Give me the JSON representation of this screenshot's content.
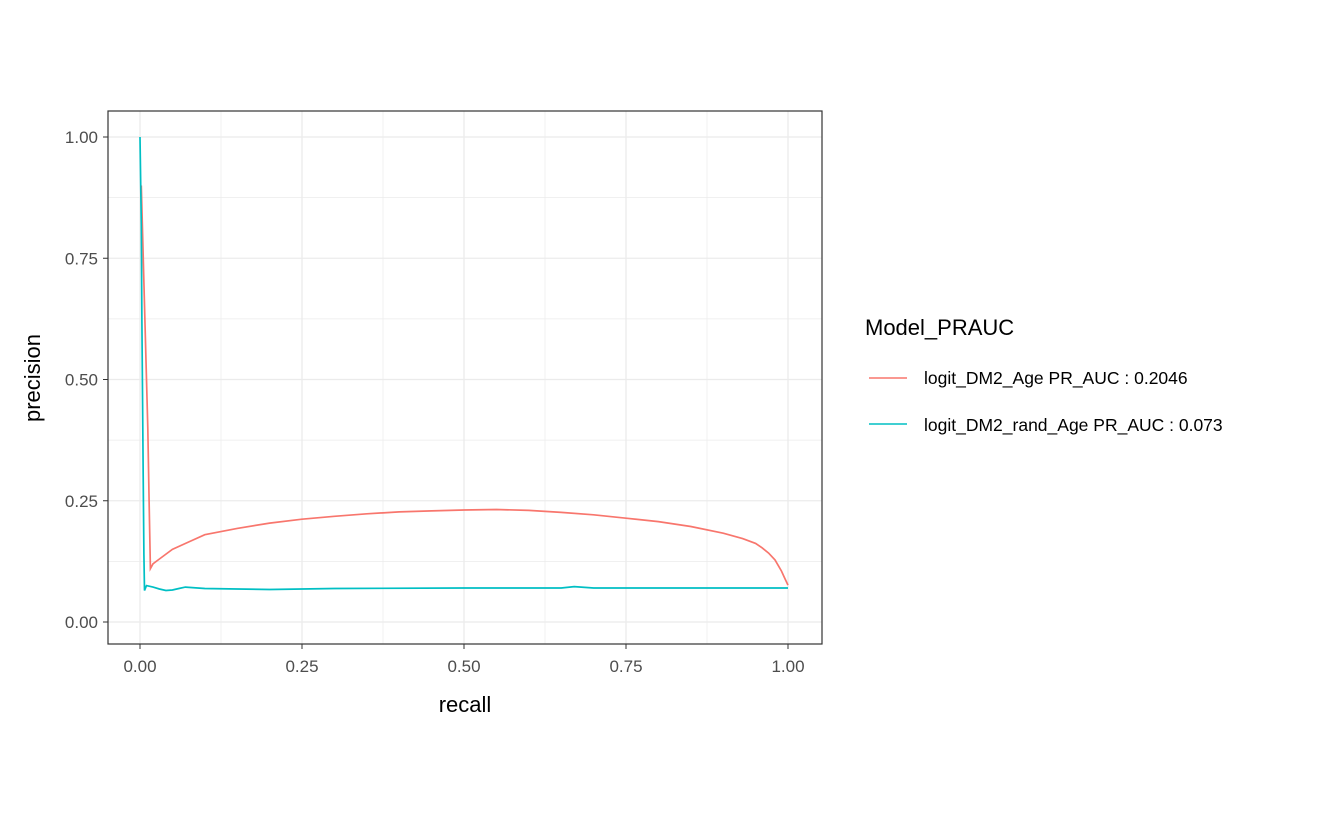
{
  "chart_data": {
    "type": "line",
    "title": "",
    "xlabel": "recall",
    "ylabel": "precision",
    "xlim": [
      -0.05,
      1.05
    ],
    "ylim": [
      -0.05,
      1.05
    ],
    "xticks": [
      "0.00",
      "0.25",
      "0.50",
      "0.75",
      "1.00"
    ],
    "yticks": [
      "0.00",
      "0.25",
      "0.50",
      "0.75",
      "1.00"
    ],
    "grid": true,
    "theme": "bw",
    "legend": {
      "title": "Model_PRAUC",
      "placement": "right"
    },
    "series": [
      {
        "name": "logit_DM2_Age PR_AUC : 0.2046",
        "color": "#F8766D",
        "x": [
          0.002,
          0.004,
          0.006,
          0.008,
          0.01,
          0.012,
          0.014,
          0.016,
          0.02,
          0.03,
          0.05,
          0.075,
          0.1,
          0.15,
          0.2,
          0.25,
          0.3,
          0.35,
          0.4,
          0.45,
          0.5,
          0.55,
          0.6,
          0.65,
          0.7,
          0.75,
          0.8,
          0.85,
          0.9,
          0.93,
          0.95,
          0.96,
          0.97,
          0.98,
          0.99,
          0.995,
          1.0
        ],
        "y": [
          0.9,
          0.8,
          0.7,
          0.6,
          0.5,
          0.4,
          0.25,
          0.11,
          0.12,
          0.13,
          0.15,
          0.165,
          0.18,
          0.193,
          0.204,
          0.212,
          0.218,
          0.223,
          0.227,
          0.229,
          0.231,
          0.232,
          0.23,
          0.226,
          0.221,
          0.214,
          0.207,
          0.197,
          0.183,
          0.172,
          0.162,
          0.153,
          0.142,
          0.128,
          0.105,
          0.09,
          0.076
        ]
      },
      {
        "name": "logit_DM2_rand_Age PR_AUC : 0.073",
        "color": "#00BFC4",
        "x": [
          0.0,
          0.002,
          0.003,
          0.004,
          0.005,
          0.006,
          0.007,
          0.01,
          0.02,
          0.03,
          0.04,
          0.05,
          0.06,
          0.07,
          0.1,
          0.15,
          0.2,
          0.3,
          0.5,
          0.65,
          0.67,
          0.7,
          0.85,
          1.0
        ],
        "y": [
          1.0,
          0.82,
          0.62,
          0.45,
          0.3,
          0.14,
          0.065,
          0.075,
          0.072,
          0.068,
          0.065,
          0.066,
          0.069,
          0.072,
          0.069,
          0.068,
          0.067,
          0.069,
          0.07,
          0.07,
          0.073,
          0.07,
          0.07,
          0.07
        ]
      }
    ]
  }
}
